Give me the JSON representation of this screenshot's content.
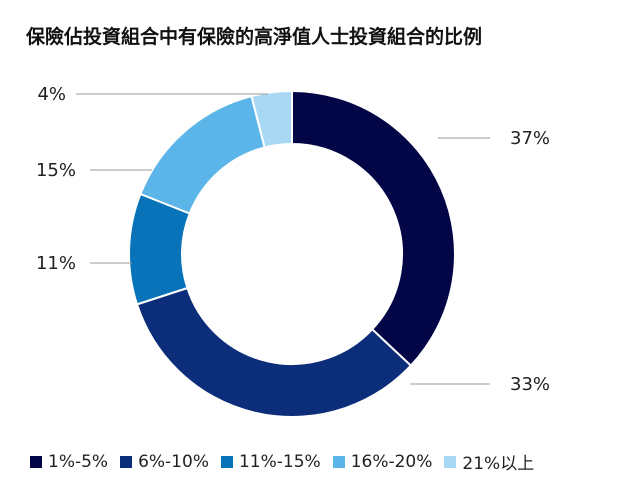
{
  "chart_data": {
    "type": "pie",
    "title": "保險佔投資組合中有保險的高淨值人士投資組合的比例",
    "categories": [
      "1%-5%",
      "6%-10%",
      "11%-15%",
      "16%-20%",
      "21%以上"
    ],
    "values": [
      37,
      33,
      11,
      15,
      4
    ],
    "value_labels": [
      "37%",
      "33%",
      "11%",
      "15%",
      "4%"
    ],
    "colors": [
      "#020546",
      "#0B2D7A",
      "#0873B9",
      "#5BB5E8",
      "#A9D8F5"
    ],
    "donut": true,
    "legend_position": "bottom"
  }
}
